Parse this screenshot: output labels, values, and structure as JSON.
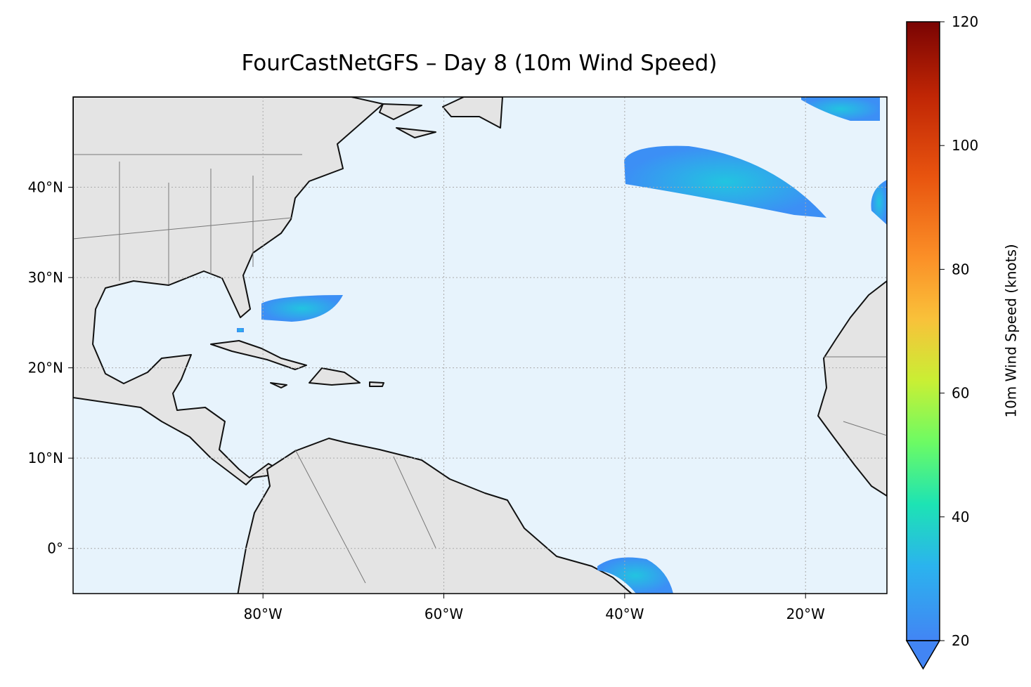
{
  "title": "FourCastNetGFS – Day 8 (10m Wind Speed)",
  "map": {
    "xlim": [
      -101,
      -11
    ],
    "ylim": [
      -5,
      50
    ],
    "xticks": [
      {
        "value": -80,
        "label": "80°W"
      },
      {
        "value": -60,
        "label": "60°W"
      },
      {
        "value": -40,
        "label": "40°W"
      },
      {
        "value": -20,
        "label": "20°W"
      }
    ],
    "yticks": [
      {
        "value": 0,
        "label": "0°"
      },
      {
        "value": 10,
        "label": "10°N"
      },
      {
        "value": 20,
        "label": "20°N"
      },
      {
        "value": 30,
        "label": "30°N"
      },
      {
        "value": 40,
        "label": "40°N"
      }
    ],
    "grid": true
  },
  "colorbar": {
    "label": "10m Wind Speed (knots)",
    "lim": [
      20,
      120
    ],
    "ticks": [
      20,
      40,
      60,
      80,
      100,
      120
    ]
  }
}
